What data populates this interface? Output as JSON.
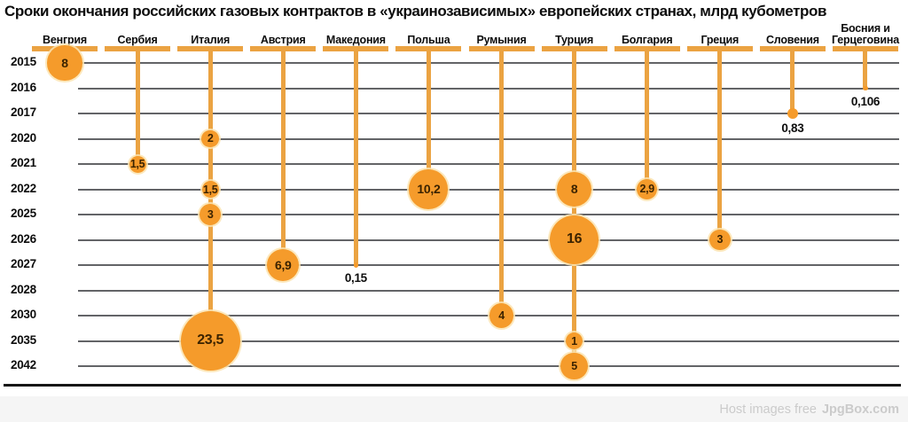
{
  "title": "Сроки окончания российских газовых контрактов в «украинозависимых» европейских странах, млрд кубометров",
  "watermark": {
    "prefix": "Host images free",
    "brand": "JpgBox.com"
  },
  "colors": {
    "bubble": "#F59B2B",
    "bar": "#EBA342",
    "grid": "#636467",
    "axis": "#161616",
    "bubble_label": "#3b2300",
    "outside_label": "#0d0d0d",
    "footer_bg": "#f5f5f5",
    "watermark_text": "#cbcbcb"
  },
  "chart_data": {
    "type": "bubble-timeline",
    "unit": "млрд кубометров",
    "years": [
      "2015",
      "2016",
      "2017",
      "2020",
      "2021",
      "2022",
      "2025",
      "2026",
      "2027",
      "2028",
      "2030",
      "2035",
      "2042"
    ],
    "countries": [
      {
        "name": "Венгрия",
        "slug": "hungary",
        "points": [
          {
            "year": "2015",
            "value": 8,
            "label": "8"
          }
        ]
      },
      {
        "name": "Сербия",
        "slug": "serbia",
        "points": [
          {
            "year": "2021",
            "value": 1.5,
            "label": "1,5"
          }
        ]
      },
      {
        "name": "Италия",
        "slug": "italy",
        "points": [
          {
            "year": "2020",
            "value": 2,
            "label": "2"
          },
          {
            "year": "2022",
            "value": 1.5,
            "label": "1,5"
          },
          {
            "year": "2025",
            "value": 3,
            "label": "3"
          },
          {
            "year": "2035",
            "value": 23.5,
            "label": "23,5"
          }
        ]
      },
      {
        "name": "Австрия",
        "slug": "austria",
        "points": [
          {
            "year": "2027",
            "value": 6.9,
            "label": "6,9"
          }
        ]
      },
      {
        "name": "Македония",
        "slug": "macedonia",
        "points": [
          {
            "year": "2027",
            "value": 0.15,
            "label": "0,15"
          }
        ]
      },
      {
        "name": "Польша",
        "slug": "poland",
        "points": [
          {
            "year": "2022",
            "value": 10.2,
            "label": "10,2"
          }
        ]
      },
      {
        "name": "Румыния",
        "slug": "romania",
        "points": [
          {
            "year": "2030",
            "value": 4,
            "label": "4"
          }
        ]
      },
      {
        "name": "Турция",
        "slug": "turkey",
        "points": [
          {
            "year": "2022",
            "value": 8,
            "label": "8"
          },
          {
            "year": "2026",
            "value": 16,
            "label": "16"
          },
          {
            "year": "2035",
            "value": 1,
            "label": "1"
          },
          {
            "year": "2042",
            "value": 5,
            "label": "5"
          }
        ]
      },
      {
        "name": "Болгария",
        "slug": "bulgaria",
        "points": [
          {
            "year": "2022",
            "value": 2.9,
            "label": "2,9"
          }
        ]
      },
      {
        "name": "Греция",
        "slug": "greece",
        "points": [
          {
            "year": "2026",
            "value": 3,
            "label": "3"
          }
        ]
      },
      {
        "name": "Словения",
        "slug": "slovenia",
        "points": [
          {
            "year": "2017",
            "value": 0.83,
            "label": "0,83"
          }
        ]
      },
      {
        "name": "Босния и Герцеговина",
        "slug": "bosnia-herzegovina",
        "points": [
          {
            "year": "2016",
            "value": 0.106,
            "label": "0,106"
          }
        ]
      }
    ]
  }
}
